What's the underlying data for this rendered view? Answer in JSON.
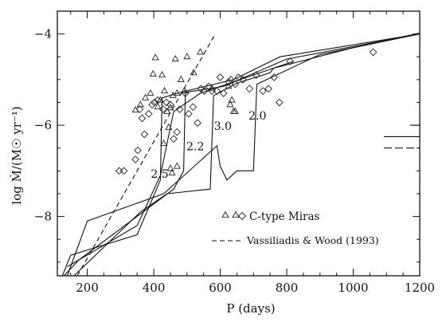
{
  "chart_data": {
    "type": "scatter",
    "xlabel": "P (days)",
    "ylabel": "log Ṁ/(M☉ yr⁻¹)",
    "xlim": [
      110,
      1200
    ],
    "ylim": [
      -9.3,
      -3.5
    ],
    "x_ticks": [
      200,
      400,
      600,
      800,
      1000,
      1200
    ],
    "y_ticks": [
      -8,
      -6,
      -4
    ],
    "x_tick_labels": [
      "200",
      "400",
      "600",
      "800",
      "1000",
      "1200"
    ],
    "y_tick_labels": [
      "−8",
      "−6",
      "−4"
    ],
    "grid": false,
    "legend_position": "bottom-right",
    "legend": {
      "miras": "C-type Miras",
      "vw": "Vassiliadis & Wood (1993)"
    },
    "annotations": [
      {
        "text": "2.5",
        "x": 418,
        "y": -7.15
      },
      {
        "text": "2.2",
        "x": 525,
        "y": -6.55
      },
      {
        "text": "3.0",
        "x": 608,
        "y": -6.1
      },
      {
        "text": "2.0",
        "x": 712,
        "y": -5.88
      }
    ],
    "series": [
      {
        "marker": "triangle",
        "points": [
          [
            345,
            -5.67
          ],
          [
            360,
            -5.55
          ],
          [
            375,
            -5.4
          ],
          [
            390,
            -5.3
          ],
          [
            398,
            -4.88
          ],
          [
            405,
            -4.52
          ],
          [
            412,
            -5.6
          ],
          [
            420,
            -5.45
          ],
          [
            425,
            -4.9
          ],
          [
            432,
            -5.25
          ],
          [
            440,
            -5.7
          ],
          [
            445,
            -6.05
          ],
          [
            450,
            -5.62
          ],
          [
            458,
            -5.35
          ],
          [
            465,
            -4.55
          ],
          [
            470,
            -5.3
          ],
          [
            482,
            -5.0
          ],
          [
            492,
            -5.25
          ],
          [
            500,
            -4.5
          ],
          [
            520,
            -4.85
          ],
          [
            540,
            -4.4
          ],
          [
            575,
            -5.2
          ],
          [
            625,
            -5.15
          ],
          [
            630,
            -5.55
          ],
          [
            635,
            -5.45
          ],
          [
            640,
            -5.7
          ],
          [
            645,
            -5.7
          ],
          [
            450,
            -6.95
          ],
          [
            455,
            -7.05
          ],
          [
            470,
            -6.9
          ],
          [
            430,
            -6.4
          ]
        ]
      },
      {
        "marker": "diamond",
        "points": [
          [
            296,
            -7.0
          ],
          [
            310,
            -7.0
          ],
          [
            345,
            -6.75
          ],
          [
            352,
            -6.55
          ],
          [
            358,
            -5.65
          ],
          [
            365,
            -5.85
          ],
          [
            372,
            -6.2
          ],
          [
            385,
            -5.75
          ],
          [
            395,
            -5.55
          ],
          [
            402,
            -5.5
          ],
          [
            412,
            -5.45
          ],
          [
            428,
            -5.65
          ],
          [
            438,
            -5.5
          ],
          [
            450,
            -5.55
          ],
          [
            460,
            -6.3
          ],
          [
            470,
            -6.15
          ],
          [
            478,
            -5.65
          ],
          [
            495,
            -5.3
          ],
          [
            505,
            -5.75
          ],
          [
            518,
            -5.6
          ],
          [
            532,
            -5.95
          ],
          [
            542,
            -5.2
          ],
          [
            552,
            -5.25
          ],
          [
            565,
            -5.15
          ],
          [
            575,
            -5.25
          ],
          [
            590,
            -5.25
          ],
          [
            600,
            -4.95
          ],
          [
            610,
            -5.3
          ],
          [
            625,
            -5.05
          ],
          [
            632,
            -5.0
          ],
          [
            645,
            -5.1
          ],
          [
            655,
            -4.95
          ],
          [
            668,
            -5.0
          ],
          [
            688,
            -5.2
          ],
          [
            708,
            -4.9
          ],
          [
            728,
            -5.25
          ],
          [
            745,
            -5.2
          ],
          [
            762,
            -4.95
          ],
          [
            778,
            -5.5
          ],
          [
            810,
            -4.6
          ],
          [
            1060,
            -4.4
          ]
        ]
      },
      {
        "name": "Vassiliadis & Wood (1993)",
        "style": "dashed",
        "points": [
          [
            170,
            -9.3
          ],
          [
            585,
            -4.0
          ]
        ]
      },
      {
        "style": "solid",
        "label": "2.5",
        "points": [
          [
            125,
            -9.3
          ],
          [
            150,
            -8.85
          ],
          [
            350,
            -8.4
          ],
          [
            420,
            -7.2
          ],
          [
            425,
            -5.4
          ],
          [
            480,
            -5.28
          ],
          [
            640,
            -5.0
          ],
          [
            780,
            -4.5
          ],
          [
            1200,
            -4.0
          ]
        ]
      },
      {
        "style": "solid",
        "label": "2.2",
        "points": [
          [
            130,
            -9.3
          ],
          [
            175,
            -8.95
          ],
          [
            460,
            -7.4
          ],
          [
            490,
            -7.0
          ],
          [
            495,
            -5.28
          ],
          [
            610,
            -5.15
          ],
          [
            800,
            -4.55
          ],
          [
            1200,
            -4.0
          ]
        ]
      },
      {
        "style": "solid",
        "label": "3.0",
        "points": [
          [
            140,
            -9.3
          ],
          [
            200,
            -8.1
          ],
          [
            430,
            -7.5
          ],
          [
            590,
            -6.45
          ],
          [
            600,
            -6.9
          ],
          [
            620,
            -7.2
          ],
          [
            650,
            -7.0
          ],
          [
            700,
            -7.0
          ],
          [
            710,
            -5.1
          ],
          [
            900,
            -4.45
          ],
          [
            1200,
            -4.0
          ]
        ]
      },
      {
        "style": "solid",
        "label": "2.0",
        "points": [
          [
            160,
            -9.3
          ],
          [
            360,
            -7.9
          ],
          [
            440,
            -7.5
          ],
          [
            570,
            -7.4
          ],
          [
            580,
            -5.35
          ],
          [
            650,
            -5.08
          ],
          [
            750,
            -4.85
          ],
          [
            760,
            -4.75
          ],
          [
            1000,
            -4.3
          ],
          [
            1200,
            -3.98
          ]
        ]
      },
      {
        "style": "solid",
        "label": "",
        "points": [
          [
            140,
            -9.1
          ],
          [
            350,
            -8.2
          ],
          [
            420,
            -7.1
          ],
          [
            460,
            -5.7
          ],
          [
            540,
            -5.3
          ],
          [
            820,
            -4.6
          ]
        ]
      }
    ],
    "side_marks": [
      -6.0,
      -6.25,
      -6.5
    ]
  }
}
